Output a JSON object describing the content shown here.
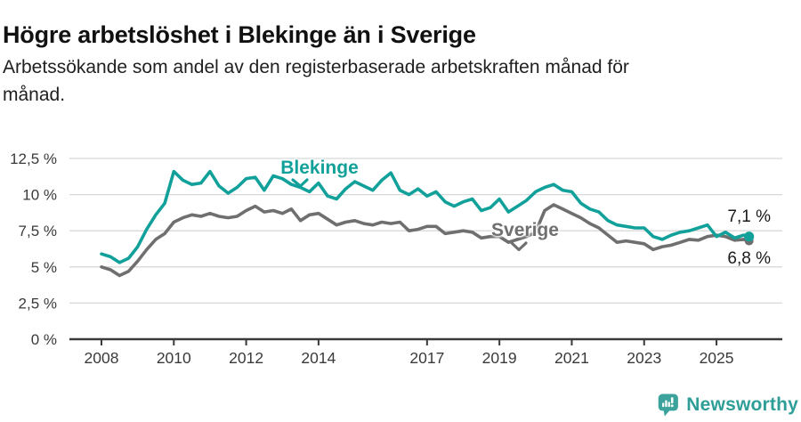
{
  "header": {
    "title": "Högre arbetslöshet i Blekinge än i Sverige",
    "subtitle_line1": "Arbetssökande som andel av den registerbaserade arbetskraften månad för",
    "subtitle_line2": "månad."
  },
  "chart_data": {
    "type": "line",
    "x_unit": "decimal_year",
    "xlim": [
      2008,
      2026.6
    ],
    "ylim": [
      0,
      13.5
    ],
    "grid": true,
    "legend_position": "inline-labels",
    "y_ticks": [
      {
        "value": 0,
        "label": "0 %"
      },
      {
        "value": 2.5,
        "label": "2,5 %"
      },
      {
        "value": 5,
        "label": "5 %"
      },
      {
        "value": 7.5,
        "label": "7,5 %"
      },
      {
        "value": 10,
        "label": "10 %"
      },
      {
        "value": 12.5,
        "label": "12,5 %"
      }
    ],
    "x_ticks": [
      {
        "value": 2008,
        "label": "2008"
      },
      {
        "value": 2010,
        "label": "2010"
      },
      {
        "value": 2012,
        "label": "2012"
      },
      {
        "value": 2014,
        "label": "2014"
      },
      {
        "value": 2017,
        "label": "2017"
      },
      {
        "value": 2019,
        "label": "2019"
      },
      {
        "value": 2021,
        "label": "2021"
      },
      {
        "value": 2023,
        "label": "2023"
      },
      {
        "value": 2025,
        "label": "2025"
      }
    ],
    "series": [
      {
        "name": "Blekinge",
        "color": "#12a19a",
        "end_label": "7,1 %",
        "end_value": 7.1,
        "points": [
          [
            2008.0,
            5.9
          ],
          [
            2008.25,
            5.7
          ],
          [
            2008.5,
            5.3
          ],
          [
            2008.75,
            5.6
          ],
          [
            2009.0,
            6.4
          ],
          [
            2009.25,
            7.6
          ],
          [
            2009.5,
            8.6
          ],
          [
            2009.75,
            9.4
          ],
          [
            2010.0,
            11.6
          ],
          [
            2010.25,
            11.0
          ],
          [
            2010.5,
            10.7
          ],
          [
            2010.75,
            10.8
          ],
          [
            2011.0,
            11.6
          ],
          [
            2011.25,
            10.6
          ],
          [
            2011.5,
            10.1
          ],
          [
            2011.75,
            10.5
          ],
          [
            2012.0,
            11.1
          ],
          [
            2012.25,
            11.2
          ],
          [
            2012.5,
            10.3
          ],
          [
            2012.75,
            11.3
          ],
          [
            2013.0,
            11.1
          ],
          [
            2013.25,
            10.7
          ],
          [
            2013.5,
            10.5
          ],
          [
            2013.75,
            10.2
          ],
          [
            2014.0,
            10.8
          ],
          [
            2014.25,
            9.9
          ],
          [
            2014.5,
            9.7
          ],
          [
            2014.75,
            10.4
          ],
          [
            2015.0,
            10.9
          ],
          [
            2015.25,
            10.6
          ],
          [
            2015.5,
            10.3
          ],
          [
            2015.75,
            11.0
          ],
          [
            2016.0,
            11.5
          ],
          [
            2016.25,
            10.3
          ],
          [
            2016.5,
            10.0
          ],
          [
            2016.75,
            10.4
          ],
          [
            2017.0,
            9.9
          ],
          [
            2017.25,
            10.2
          ],
          [
            2017.5,
            9.5
          ],
          [
            2017.75,
            9.2
          ],
          [
            2018.0,
            9.5
          ],
          [
            2018.25,
            9.7
          ],
          [
            2018.5,
            8.9
          ],
          [
            2018.75,
            9.1
          ],
          [
            2019.0,
            9.7
          ],
          [
            2019.25,
            8.8
          ],
          [
            2019.5,
            9.2
          ],
          [
            2019.75,
            9.6
          ],
          [
            2020.0,
            10.2
          ],
          [
            2020.25,
            10.5
          ],
          [
            2020.5,
            10.7
          ],
          [
            2020.75,
            10.3
          ],
          [
            2021.0,
            10.2
          ],
          [
            2021.25,
            9.4
          ],
          [
            2021.5,
            9.0
          ],
          [
            2021.75,
            8.8
          ],
          [
            2022.0,
            8.2
          ],
          [
            2022.25,
            7.9
          ],
          [
            2022.5,
            7.8
          ],
          [
            2022.75,
            7.7
          ],
          [
            2023.0,
            7.7
          ],
          [
            2023.25,
            7.1
          ],
          [
            2023.5,
            6.9
          ],
          [
            2023.75,
            7.2
          ],
          [
            2024.0,
            7.4
          ],
          [
            2024.25,
            7.5
          ],
          [
            2024.5,
            7.7
          ],
          [
            2024.75,
            7.9
          ],
          [
            2025.0,
            7.1
          ],
          [
            2025.25,
            7.4
          ],
          [
            2025.5,
            7.0
          ],
          [
            2025.75,
            7.2
          ],
          [
            2025.9,
            7.1
          ]
        ]
      },
      {
        "name": "Sverige",
        "color": "#6f6f6f",
        "end_label": "6,8 %",
        "end_value": 6.8,
        "points": [
          [
            2008.0,
            5.0
          ],
          [
            2008.25,
            4.8
          ],
          [
            2008.5,
            4.4
          ],
          [
            2008.75,
            4.7
          ],
          [
            2009.0,
            5.4
          ],
          [
            2009.25,
            6.2
          ],
          [
            2009.5,
            6.9
          ],
          [
            2009.75,
            7.3
          ],
          [
            2010.0,
            8.1
          ],
          [
            2010.25,
            8.4
          ],
          [
            2010.5,
            8.6
          ],
          [
            2010.75,
            8.5
          ],
          [
            2011.0,
            8.7
          ],
          [
            2011.25,
            8.5
          ],
          [
            2011.5,
            8.4
          ],
          [
            2011.75,
            8.5
          ],
          [
            2012.0,
            8.9
          ],
          [
            2012.25,
            9.2
          ],
          [
            2012.5,
            8.8
          ],
          [
            2012.75,
            8.9
          ],
          [
            2013.0,
            8.7
          ],
          [
            2013.25,
            9.0
          ],
          [
            2013.5,
            8.2
          ],
          [
            2013.75,
            8.6
          ],
          [
            2014.0,
            8.7
          ],
          [
            2014.25,
            8.3
          ],
          [
            2014.5,
            7.9
          ],
          [
            2014.75,
            8.1
          ],
          [
            2015.0,
            8.2
          ],
          [
            2015.25,
            8.0
          ],
          [
            2015.5,
            7.9
          ],
          [
            2015.75,
            8.1
          ],
          [
            2016.0,
            8.0
          ],
          [
            2016.25,
            8.1
          ],
          [
            2016.5,
            7.5
          ],
          [
            2016.75,
            7.6
          ],
          [
            2017.0,
            7.8
          ],
          [
            2017.25,
            7.8
          ],
          [
            2017.5,
            7.3
          ],
          [
            2017.75,
            7.4
          ],
          [
            2018.0,
            7.5
          ],
          [
            2018.25,
            7.4
          ],
          [
            2018.5,
            7.0
          ],
          [
            2018.75,
            7.1
          ],
          [
            2019.0,
            7.1
          ],
          [
            2019.25,
            6.7
          ],
          [
            2019.5,
            6.9
          ],
          [
            2019.75,
            7.1
          ],
          [
            2020.0,
            7.4
          ],
          [
            2020.25,
            8.9
          ],
          [
            2020.5,
            9.3
          ],
          [
            2020.75,
            9.0
          ],
          [
            2021.0,
            8.7
          ],
          [
            2021.25,
            8.4
          ],
          [
            2021.5,
            8.0
          ],
          [
            2021.75,
            7.7
          ],
          [
            2022.0,
            7.2
          ],
          [
            2022.25,
            6.7
          ],
          [
            2022.5,
            6.8
          ],
          [
            2022.75,
            6.7
          ],
          [
            2023.0,
            6.6
          ],
          [
            2023.25,
            6.2
          ],
          [
            2023.5,
            6.4
          ],
          [
            2023.75,
            6.5
          ],
          [
            2024.0,
            6.7
          ],
          [
            2024.25,
            6.9
          ],
          [
            2024.5,
            6.85
          ],
          [
            2024.75,
            7.1
          ],
          [
            2025.0,
            7.2
          ],
          [
            2025.25,
            7.1
          ],
          [
            2025.5,
            6.85
          ],
          [
            2025.75,
            6.9
          ],
          [
            2025.9,
            6.8
          ]
        ]
      }
    ]
  },
  "footer": {
    "brand": "Newsworthy"
  },
  "colors": {
    "accent_teal": "#12a19a",
    "series_gray": "#6f6f6f",
    "gridline": "#d8d8d8",
    "axis": "#3a3a3a",
    "logo_icon": "#3ba39b",
    "logo_text": "#2e9e97"
  }
}
